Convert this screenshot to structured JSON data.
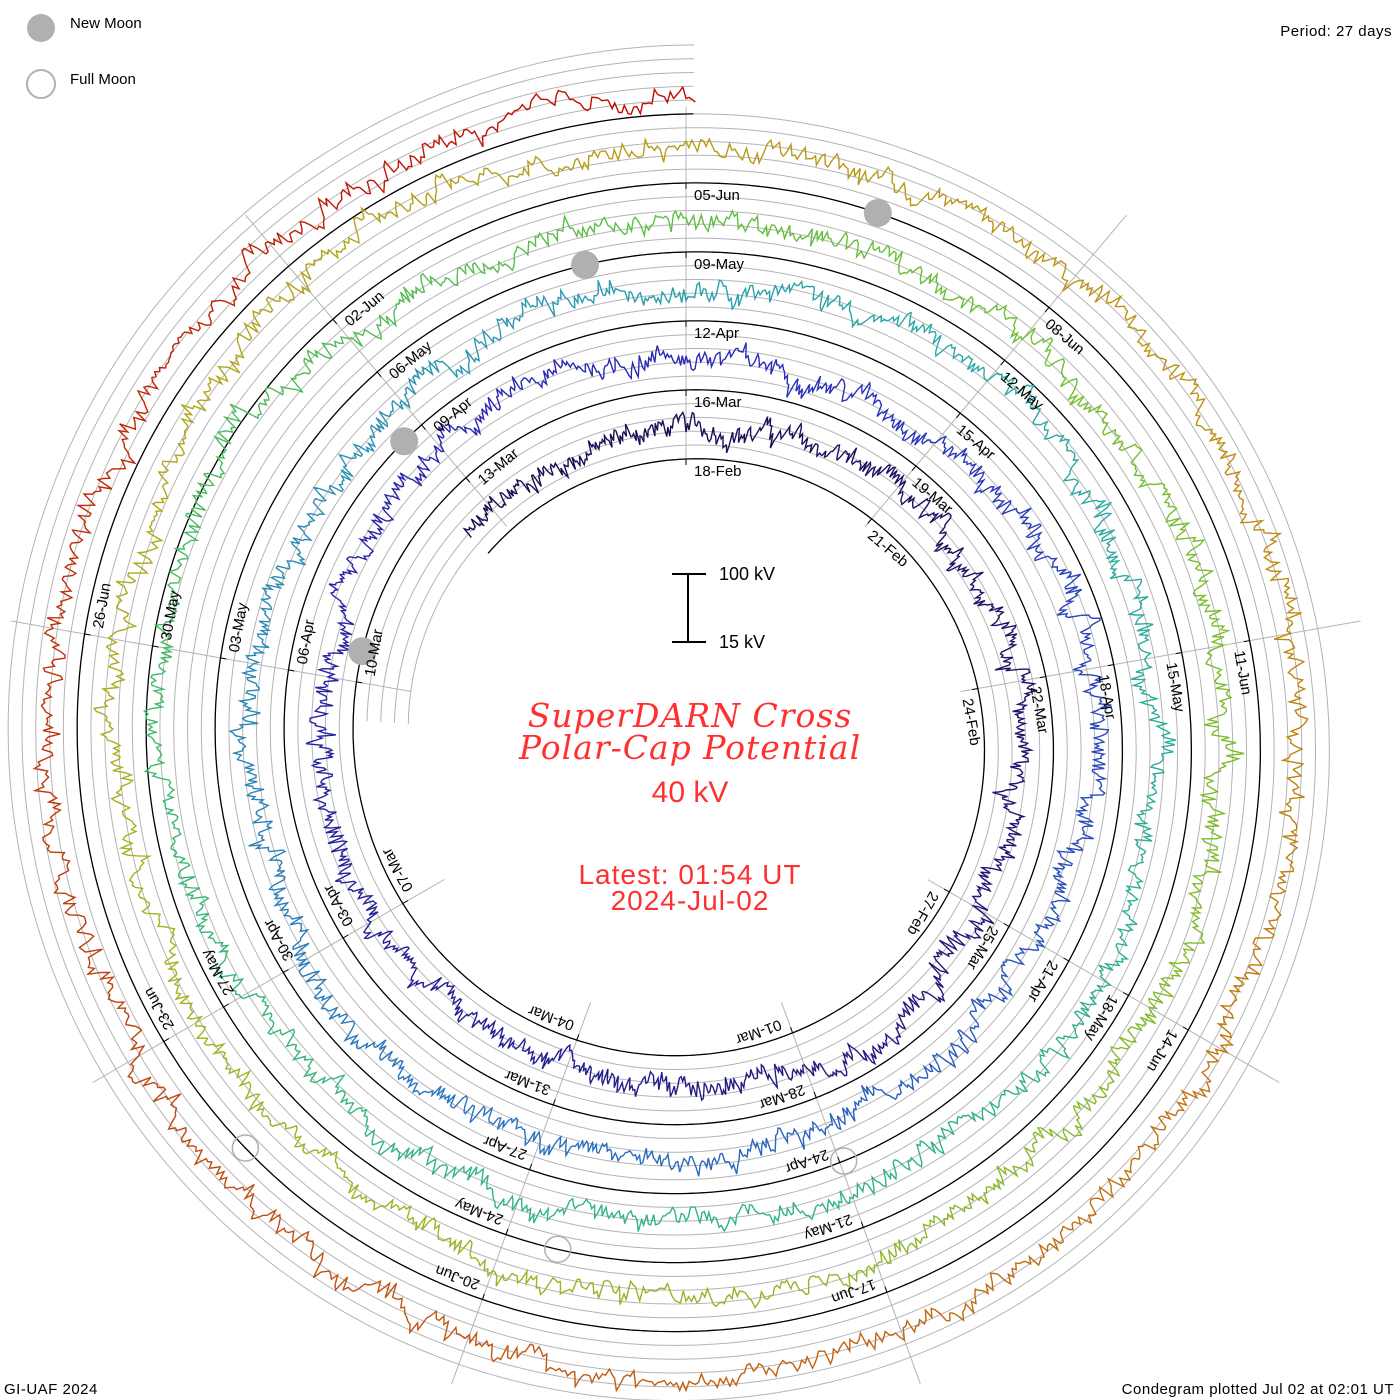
{
  "legend": {
    "new_moon": "New Moon",
    "full_moon": "Full Moon"
  },
  "period": "Period: 27 days",
  "footer_left": "GI-UAF 2024",
  "footer_right": "Condegram plotted Jul 02 at 02:01 UT",
  "scale": {
    "top_label": "100 kV",
    "bottom_label": "15 kV"
  },
  "title_line1": "SuperDARN Cross",
  "title_line2": "Polar-Cap Potential",
  "current_value": "40 kV",
  "latest_time": "Latest: 01:54 UT",
  "latest_date": "2024-Jul-02",
  "colors": {
    "title": "#ff3030",
    "baseline": "#000000",
    "grid": "#b4b4b4",
    "moon": "#b0b0b0"
  },
  "chart_data": {
    "type": "line",
    "subtype": "spiral-condegram",
    "title": "SuperDARN Cross Polar-Cap Potential",
    "period_days": 27,
    "spiral_start": "2024-02-18",
    "unit": "kV",
    "scale_range": [
      15,
      100
    ],
    "data_start_day": -3.5,
    "data_end_day": 135.08,
    "daily_values_kV_from_2024-02-14": [
      45,
      50,
      48,
      55,
      52,
      58,
      62,
      60,
      66,
      70,
      64,
      58,
      55,
      62,
      68,
      72,
      60,
      54,
      50,
      48,
      52,
      57,
      62,
      58,
      50,
      46,
      52,
      60,
      64,
      66,
      58,
      54,
      52,
      55,
      60,
      68,
      74,
      70,
      62,
      58,
      55,
      52,
      50,
      54,
      58,
      62,
      66,
      70,
      72,
      64,
      58,
      60,
      56,
      52,
      50,
      55,
      60,
      58,
      62,
      66,
      70,
      74,
      68,
      62,
      58,
      56,
      60,
      64,
      62,
      58,
      55,
      52,
      50,
      54,
      58,
      62,
      70,
      78,
      86,
      90,
      98,
      80,
      66,
      60,
      56,
      52,
      50,
      54,
      58,
      62,
      60,
      56,
      52,
      50,
      48,
      52,
      56,
      60,
      58,
      55,
      52,
      50,
      48,
      52,
      56,
      58,
      60,
      66,
      74,
      80,
      72,
      64,
      60,
      58,
      62,
      66,
      70,
      72,
      68,
      62,
      58,
      56,
      60,
      64,
      70,
      74,
      72,
      66,
      60,
      56,
      52,
      50,
      48,
      46,
      44,
      42,
      40,
      40,
      40
    ],
    "date_labels": [
      "18-Feb",
      "21-Feb",
      "24-Feb",
      "27-Feb",
      "01-Mar",
      "04-Mar",
      "07-Mar",
      "10-Mar",
      "13-Mar",
      "16-Mar",
      "19-Mar",
      "22-Mar",
      "25-Mar",
      "28-Mar",
      "31-Mar",
      "03-Apr",
      "06-Apr",
      "09-Apr",
      "12-Apr",
      "15-Apr",
      "18-Apr",
      "21-Apr",
      "24-Apr",
      "27-Apr",
      "30-Apr",
      "03-May",
      "06-May",
      "09-May",
      "12-May",
      "15-May",
      "18-May",
      "21-May",
      "24-May",
      "27-May",
      "30-May",
      "02-Jun",
      "05-Jun",
      "08-Jun",
      "11-Jun",
      "14-Jun",
      "17-Jun",
      "20-Jun",
      "23-Jun",
      "26-Jun"
    ],
    "new_moons_day": [
      21.4,
      50.75,
      80.1,
      109.5
    ],
    "full_moons_day": [
      65.96,
      95.56,
      125.04
    ],
    "color_stops": [
      {
        "day": -4,
        "color": "#1a0a4a"
      },
      {
        "day": 27,
        "color": "#2a2ab8"
      },
      {
        "day": 42,
        "color": "#2a72c0"
      },
      {
        "day": 56,
        "color": "#2aa8a8"
      },
      {
        "day": 72,
        "color": "#34b878"
      },
      {
        "day": 84,
        "color": "#70c030"
      },
      {
        "day": 100,
        "color": "#a8b020"
      },
      {
        "day": 112,
        "color": "#c09010"
      },
      {
        "day": 124,
        "color": "#c05010"
      },
      {
        "day": 136,
        "color": "#c00000"
      }
    ]
  }
}
